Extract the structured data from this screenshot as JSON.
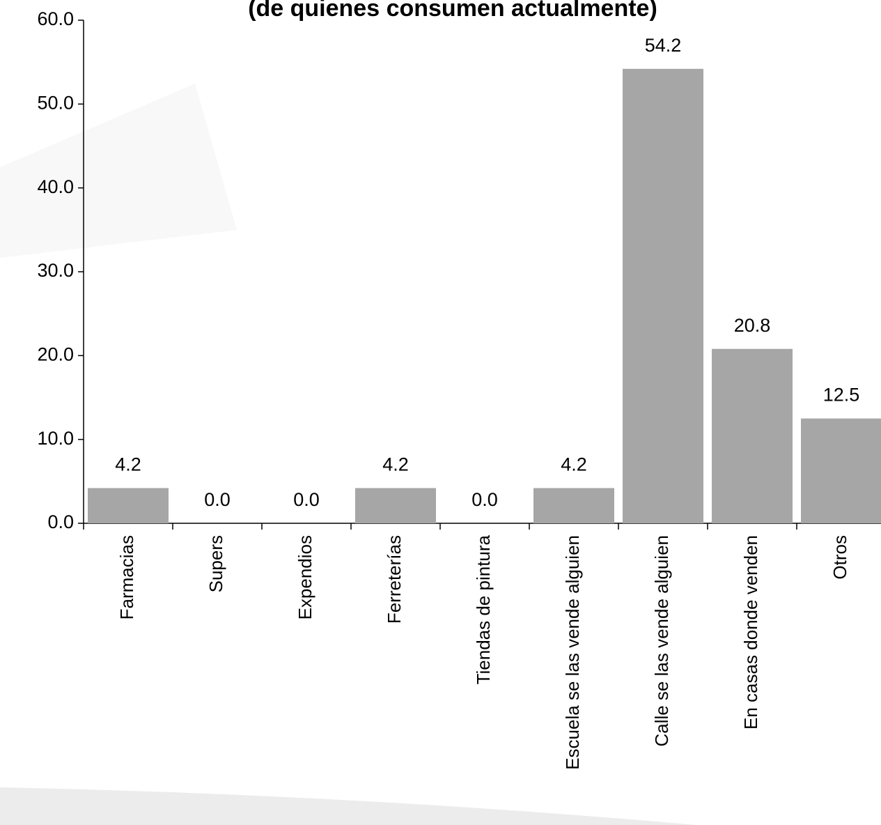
{
  "chart_data": {
    "type": "bar",
    "title": "(de quienes consumen actualmente)",
    "categories": [
      "Farmacias",
      "Supers",
      "Expendios",
      "Ferreterías",
      "Tiendas de pintura",
      "Escuela se las vende alguien",
      "Calle se las vende alguien",
      "En casas donde venden",
      "Otros"
    ],
    "values": [
      4.2,
      0,
      0,
      4.2,
      0,
      4.2,
      54.2,
      20.8,
      12.5
    ],
    "value_labels": [
      "4.2",
      "0.0",
      "0.0",
      "4.2",
      "0.0",
      "4.2",
      "54.2",
      "20.8",
      "12.5"
    ],
    "color": "#a6a6a6",
    "ylim": [
      0,
      60
    ],
    "yticks": [
      {
        "value": 0,
        "label": "0.0"
      },
      {
        "value": 10,
        "label": "10.0"
      },
      {
        "value": 20,
        "label": "20.0"
      },
      {
        "value": 30,
        "label": "30.0"
      },
      {
        "value": 40,
        "label": "40.0"
      },
      {
        "value": 50,
        "label": "50.0"
      },
      {
        "value": 60,
        "label": "60.0"
      }
    ],
    "grid": false
  }
}
